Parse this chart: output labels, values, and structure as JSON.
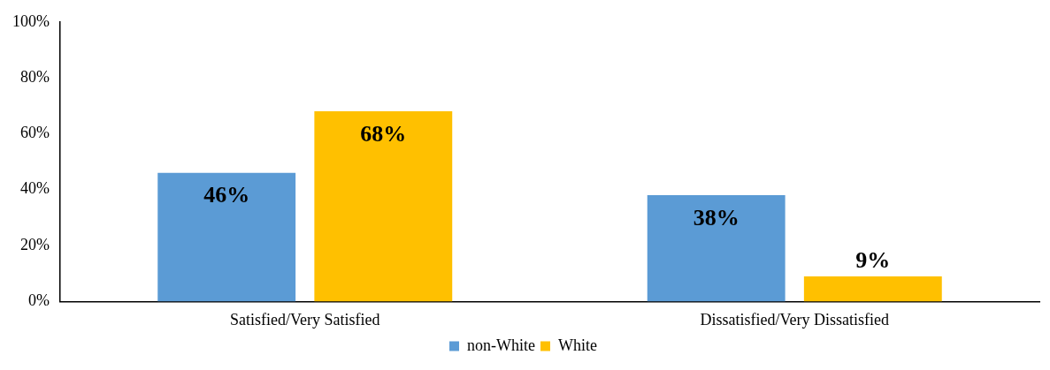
{
  "chart_data": {
    "type": "bar",
    "categories": [
      "Satisfied/Very Satisfied",
      "Dissatisfied/Very Dissatisfied"
    ],
    "series": [
      {
        "name": "non-White",
        "color": "#5b9bd5",
        "values": [
          46,
          38
        ],
        "value_labels": [
          "46%",
          "38%"
        ]
      },
      {
        "name": "White",
        "color": "#ffc000",
        "values": [
          68,
          9
        ],
        "value_labels": [
          "68%",
          "9%"
        ]
      }
    ],
    "ylim": [
      0,
      100
    ],
    "yticks": [
      {
        "value": 0,
        "label": "0%"
      },
      {
        "value": 20,
        "label": "20%"
      },
      {
        "value": 40,
        "label": "40%"
      },
      {
        "value": 60,
        "label": "60%"
      },
      {
        "value": 80,
        "label": "80%"
      },
      {
        "value": 100,
        "label": "100%"
      }
    ],
    "grid": false,
    "legend": "bottom"
  }
}
